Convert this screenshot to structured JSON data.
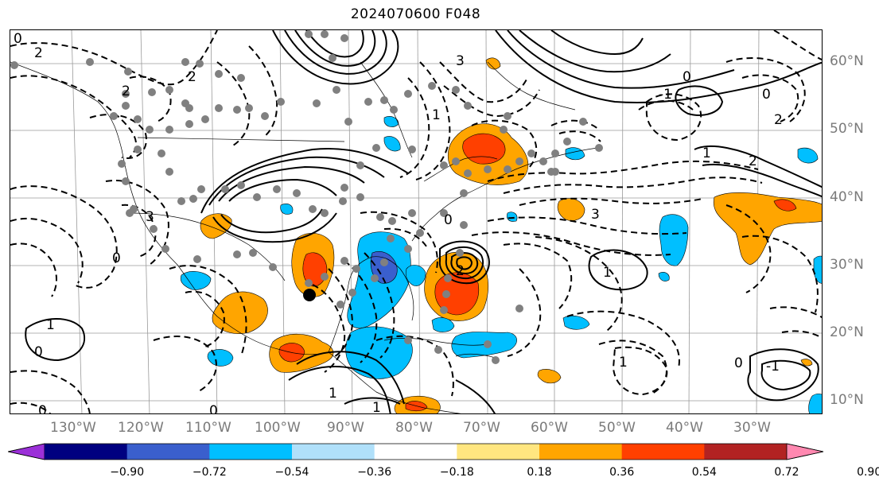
{
  "title": "2024070600 F048",
  "lat_labels": [
    "60°N",
    "50°N",
    "40°N",
    "30°N",
    "20°N",
    "10°N"
  ],
  "lon_labels": [
    "130°W",
    "120°W",
    "110°W",
    "100°W",
    "90°W",
    "80°W",
    "70°W",
    "60°W",
    "50°W",
    "40°W",
    "30°W"
  ],
  "contour_labels": [
    "0",
    "0",
    "0",
    "0",
    "0",
    "0",
    "0",
    "0",
    "1",
    "1",
    "1",
    "1",
    "1",
    "1",
    "2",
    "2",
    "2",
    "2",
    "2",
    "3",
    "3",
    "3",
    "-1",
    "-1",
    "1",
    "0",
    "2"
  ],
  "colorbar": {
    "ticks": [
      "−0.90",
      "−0.72",
      "−0.54",
      "−0.36",
      "−0.18",
      "0.18",
      "0.36",
      "0.54",
      "0.72",
      "0.90"
    ],
    "colors": [
      "#9b30d8",
      "#000080",
      "#3a5fcd",
      "#00bfff",
      "#b0e0fa",
      "#ffffff",
      "#ffe680",
      "#ffa500",
      "#ff4000",
      "#b22222",
      "#ff88b0"
    ]
  },
  "colors": {
    "positive_moderate": "#ffa500",
    "positive_strong": "#ff4000",
    "positive_stronger": "#b22222",
    "negative_light": "#00bfff",
    "negative_moderate": "#3a5fcd",
    "marker_gray": "#808080",
    "marker_black": "#000000"
  }
}
